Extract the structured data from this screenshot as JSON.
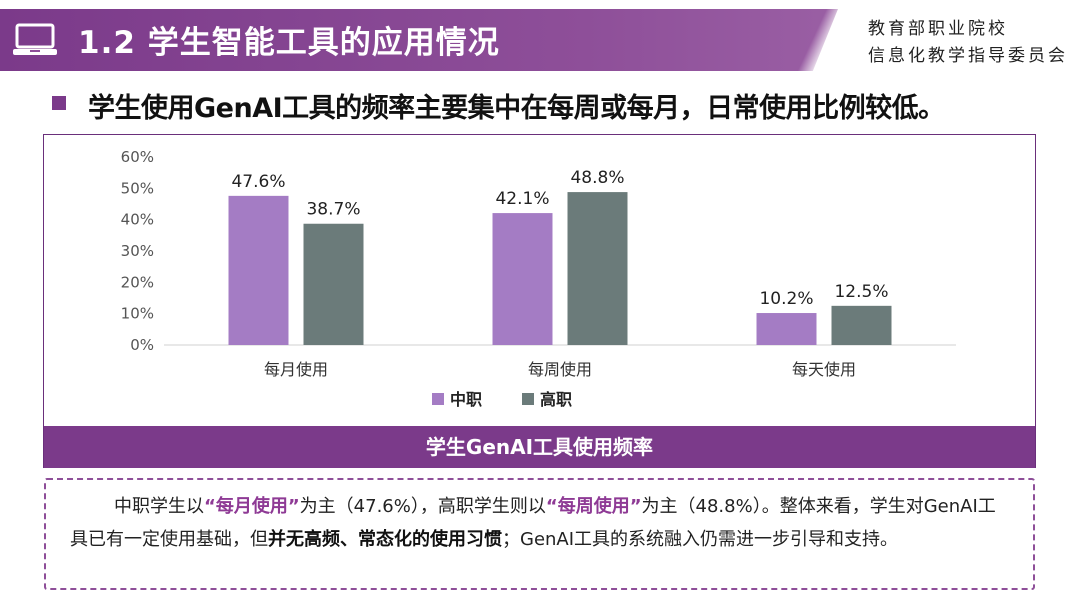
{
  "header": {
    "title": "1.2 学生智能工具的应用情况",
    "org_name": "教育部职业院校\n信息化教学指导委员会",
    "icon": "laptop-icon"
  },
  "subtitle": "学生使用GenAI工具的频率主要集中在每周或每月，日常使用比例较低。",
  "chart_data": {
    "type": "bar",
    "categories": [
      "每月使用",
      "每周使用",
      "每天使用"
    ],
    "series": [
      {
        "name": "中职",
        "values": [
          47.6,
          42.1,
          10.2
        ],
        "labels": [
          "47.6%",
          "42.1%",
          "10.2%"
        ],
        "color": "#a47cc4"
      },
      {
        "name": "高职",
        "values": [
          38.7,
          48.8,
          12.5
        ],
        "labels": [
          "38.7%",
          "48.8%",
          "12.5%"
        ],
        "color": "#6b7b7a"
      }
    ],
    "ylim": [
      0,
      60
    ],
    "yticks": [
      0,
      10,
      20,
      30,
      40,
      50,
      60
    ],
    "ytick_labels": [
      "0%",
      "10%",
      "20%",
      "30%",
      "40%",
      "50%",
      "60%"
    ],
    "grid": false,
    "legend": "bottom-center"
  },
  "caption": "学生GenAI工具使用频率",
  "note": {
    "p1": "中职学生以",
    "h1": "“每月使用”",
    "p2": "为主（47.6%），高职学生则以",
    "h2": "“每周使用”",
    "p3": "为主（48.8%）。整体来看，学生对GenAI工具已有一定使用基础，但",
    "b1": "并无高频、常态化的使用习惯",
    "p4": "；GenAI工具的系统融入仍需进一步引导和支持。"
  }
}
